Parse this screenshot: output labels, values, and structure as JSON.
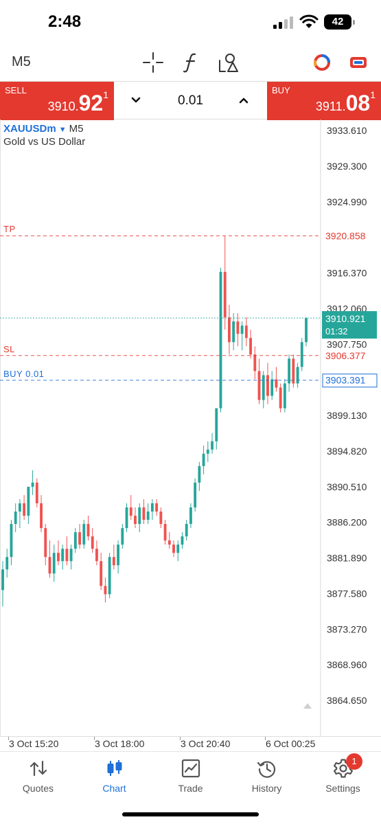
{
  "status_bar": {
    "time": "2:48",
    "battery": "42"
  },
  "toolbar": {
    "timeframe": "M5",
    "icons": [
      "crosshair-icon",
      "function-icon",
      "objects-icon",
      "account-ring-icon",
      "chat-icon"
    ]
  },
  "trade": {
    "sell": {
      "label": "SELL",
      "price_main": "3910.",
      "price_big": "92",
      "price_sup": "1"
    },
    "buy": {
      "label": "BUY",
      "price_main": "3911.",
      "price_big": "08",
      "price_sup": "1"
    },
    "lot": "0.01"
  },
  "chart": {
    "symbol": "XAUUSDm",
    "timeframe": "M5",
    "description": "Gold vs US Dollar",
    "current_time_left": "01:32",
    "colors": {
      "up": "#26a69a",
      "down": "#ef5350",
      "tp": "#e3392f",
      "sl": "#e3392f",
      "buy": "#1e6fd8",
      "bid": "#26a69a"
    }
  },
  "chart_data": {
    "type": "candlestick",
    "symbol": "XAUUSDm",
    "timeframe": "M5",
    "y_ticks": [
      3933.61,
      3929.3,
      3924.99,
      3916.37,
      3912.06,
      3907.75,
      3899.13,
      3894.82,
      3890.51,
      3886.2,
      3881.89,
      3877.58,
      3873.27,
      3868.96,
      3864.65
    ],
    "y_range": [
      3862.5,
      3935.5
    ],
    "x_labels": [
      "3 Oct 15:20",
      "3 Oct 18:00",
      "3 Oct 20:40",
      "6 Oct 00:25"
    ],
    "levels": [
      {
        "name": "TP",
        "label": "TP",
        "value": "3920.858",
        "price": 3920.858
      },
      {
        "name": "bid",
        "label": "",
        "value": "3910.921",
        "price": 3910.921
      },
      {
        "name": "SL",
        "label": "SL",
        "value": "3906.377",
        "price": 3906.377
      },
      {
        "name": "BUY",
        "label": "BUY 0.01",
        "value": "3903.391",
        "price": 3903.391
      }
    ],
    "candles": [
      [
        3878.0,
        3881.5,
        3876.0,
        3880.5
      ],
      [
        3880.5,
        3883.0,
        3879.5,
        3882.0
      ],
      [
        3882.0,
        3886.5,
        3881.0,
        3886.0
      ],
      [
        3886.0,
        3888.5,
        3885.0,
        3887.5
      ],
      [
        3887.5,
        3889.0,
        3885.5,
        3888.5
      ],
      [
        3888.5,
        3889.5,
        3886.5,
        3887.0
      ],
      [
        3887.0,
        3890.5,
        3886.0,
        3890.5
      ],
      [
        3890.5,
        3892.5,
        3889.5,
        3891.0
      ],
      [
        3891.0,
        3891.5,
        3888.0,
        3888.5
      ],
      [
        3888.5,
        3889.5,
        3885.0,
        3885.5
      ],
      [
        3885.5,
        3886.0,
        3881.0,
        3882.0
      ],
      [
        3882.0,
        3884.0,
        3879.5,
        3880.0
      ],
      [
        3880.0,
        3883.5,
        3879.0,
        3882.5
      ],
      [
        3882.5,
        3884.0,
        3881.0,
        3881.5
      ],
      [
        3881.5,
        3883.5,
        3880.5,
        3883.0
      ],
      [
        3883.0,
        3884.5,
        3881.0,
        3881.5
      ],
      [
        3881.5,
        3883.5,
        3880.5,
        3883.0
      ],
      [
        3883.0,
        3885.5,
        3882.5,
        3885.0
      ],
      [
        3885.0,
        3886.0,
        3883.0,
        3883.5
      ],
      [
        3883.5,
        3886.5,
        3883.0,
        3886.0
      ],
      [
        3886.0,
        3887.0,
        3884.0,
        3884.5
      ],
      [
        3884.5,
        3885.5,
        3882.5,
        3883.0
      ],
      [
        3883.0,
        3884.0,
        3881.0,
        3881.5
      ],
      [
        3881.5,
        3882.5,
        3878.0,
        3878.5
      ],
      [
        3878.5,
        3879.5,
        3876.5,
        3877.5
      ],
      [
        3877.5,
        3882.5,
        3877.0,
        3882.0
      ],
      [
        3882.0,
        3883.5,
        3880.5,
        3881.0
      ],
      [
        3881.0,
        3884.0,
        3880.0,
        3883.5
      ],
      [
        3883.5,
        3886.0,
        3883.0,
        3885.5
      ],
      [
        3885.5,
        3888.5,
        3885.0,
        3888.0
      ],
      [
        3888.0,
        3889.5,
        3886.5,
        3887.0
      ],
      [
        3887.0,
        3888.0,
        3885.5,
        3886.0
      ],
      [
        3886.0,
        3888.5,
        3885.0,
        3888.0
      ],
      [
        3888.0,
        3889.0,
        3886.0,
        3886.5
      ],
      [
        3886.5,
        3888.5,
        3886.0,
        3887.5
      ],
      [
        3887.5,
        3889.0,
        3886.5,
        3888.5
      ],
      [
        3888.5,
        3889.0,
        3887.0,
        3887.5
      ],
      [
        3887.5,
        3888.0,
        3885.5,
        3886.0
      ],
      [
        3886.0,
        3886.5,
        3883.5,
        3884.0
      ],
      [
        3884.0,
        3885.0,
        3883.0,
        3883.5
      ],
      [
        3883.5,
        3884.0,
        3882.0,
        3882.5
      ],
      [
        3882.5,
        3884.0,
        3881.5,
        3883.5
      ],
      [
        3883.5,
        3885.0,
        3883.0,
        3884.5
      ],
      [
        3884.5,
        3886.5,
        3884.0,
        3886.0
      ],
      [
        3886.0,
        3888.5,
        3885.5,
        3888.0
      ],
      [
        3888.0,
        3891.5,
        3887.5,
        3891.0
      ],
      [
        3891.0,
        3893.5,
        3890.0,
        3893.0
      ],
      [
        3893.0,
        3895.5,
        3892.0,
        3894.5
      ],
      [
        3894.5,
        3896.0,
        3893.5,
        3895.0
      ],
      [
        3895.0,
        3897.0,
        3894.5,
        3896.0
      ],
      [
        3896.0,
        3900.0,
        3895.0,
        3900.0
      ],
      [
        3900.0,
        3917.0,
        3899.5,
        3916.5
      ],
      [
        3916.5,
        3920.8,
        3909.5,
        3911.0
      ],
      [
        3911.0,
        3912.5,
        3906.5,
        3908.0
      ],
      [
        3908.0,
        3911.5,
        3907.0,
        3910.5
      ],
      [
        3910.5,
        3911.5,
        3907.5,
        3909.0
      ],
      [
        3909.0,
        3910.5,
        3907.0,
        3910.0
      ],
      [
        3910.0,
        3911.0,
        3907.5,
        3908.5
      ],
      [
        3908.5,
        3909.5,
        3906.0,
        3906.5
      ],
      [
        3906.5,
        3907.5,
        3903.5,
        3904.5
      ],
      [
        3904.5,
        3906.0,
        3900.5,
        3901.0
      ],
      [
        3901.0,
        3904.5,
        3900.0,
        3904.0
      ],
      [
        3904.0,
        3905.5,
        3900.5,
        3901.5
      ],
      [
        3901.5,
        3904.5,
        3901.0,
        3903.5
      ],
      [
        3903.5,
        3905.0,
        3902.0,
        3902.5
      ],
      [
        3902.5,
        3903.0,
        3899.5,
        3900.0
      ],
      [
        3900.0,
        3903.5,
        3899.5,
        3903.0
      ],
      [
        3903.0,
        3906.5,
        3902.0,
        3906.0
      ],
      [
        3906.0,
        3906.5,
        3902.5,
        3903.0
      ],
      [
        3903.0,
        3905.5,
        3902.5,
        3905.0
      ],
      [
        3905.0,
        3908.5,
        3904.5,
        3908.0
      ],
      [
        3908.0,
        3911.0,
        3907.5,
        3910.9
      ]
    ]
  },
  "time_axis": {
    "labels": [
      "3 Oct 15:20",
      "3 Oct 18:00",
      "3 Oct 20:40",
      "6 Oct 00:25"
    ]
  },
  "nav": {
    "items": [
      {
        "label": "Quotes",
        "icon": "quotes-arrows-icon"
      },
      {
        "label": "Chart",
        "icon": "candlestick-chart-icon"
      },
      {
        "label": "Trade",
        "icon": "trade-chart-icon"
      },
      {
        "label": "History",
        "icon": "history-clock-icon"
      },
      {
        "label": "Settings",
        "icon": "gear-icon"
      }
    ],
    "settings_badge": "1"
  }
}
